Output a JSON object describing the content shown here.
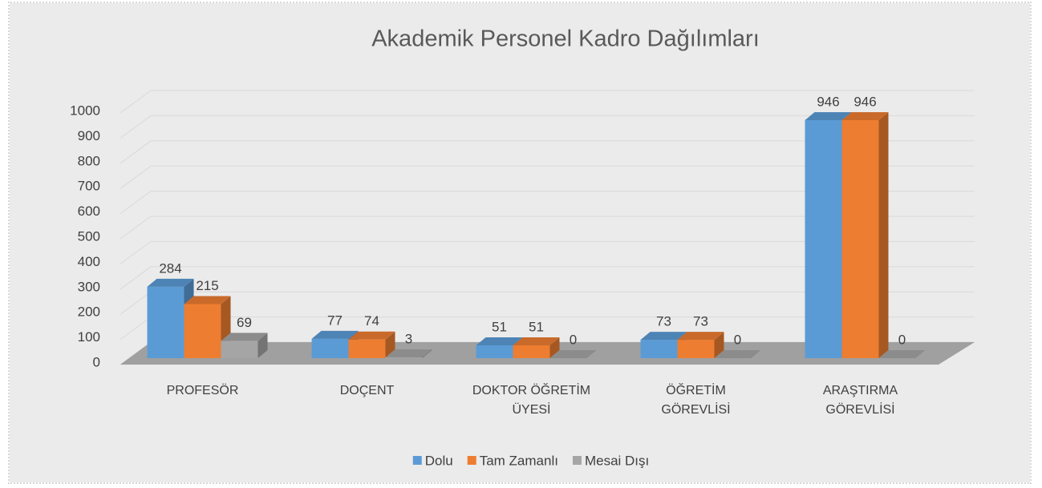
{
  "chart_data": {
    "type": "bar3d",
    "title": "Akademik Personel Kadro Dağılımları",
    "categories": [
      "PROFESÖR",
      "DOÇENT",
      "DOKTOR ÖĞRETİM ÜYESİ",
      "ÖĞRETİM GÖREVLİSİ",
      "ARAŞTIRMA GÖREVLİSİ"
    ],
    "series": [
      {
        "name": "Dolu",
        "color": "#5b9bd5",
        "values": [
          284,
          77,
          51,
          73,
          946
        ]
      },
      {
        "name": "Tam Zamanlı",
        "color": "#ed7d31",
        "values": [
          215,
          74,
          51,
          73,
          946
        ]
      },
      {
        "name": "Mesai Dışı",
        "color": "#a5a5a5",
        "values": [
          69,
          3,
          0,
          0,
          0
        ]
      }
    ],
    "ylim": [
      0,
      1000
    ],
    "yticks": [
      0,
      100,
      200,
      300,
      400,
      500,
      600,
      700,
      800,
      900,
      1000
    ],
    "grid": true,
    "legend": "bottom",
    "data_labels": true
  }
}
